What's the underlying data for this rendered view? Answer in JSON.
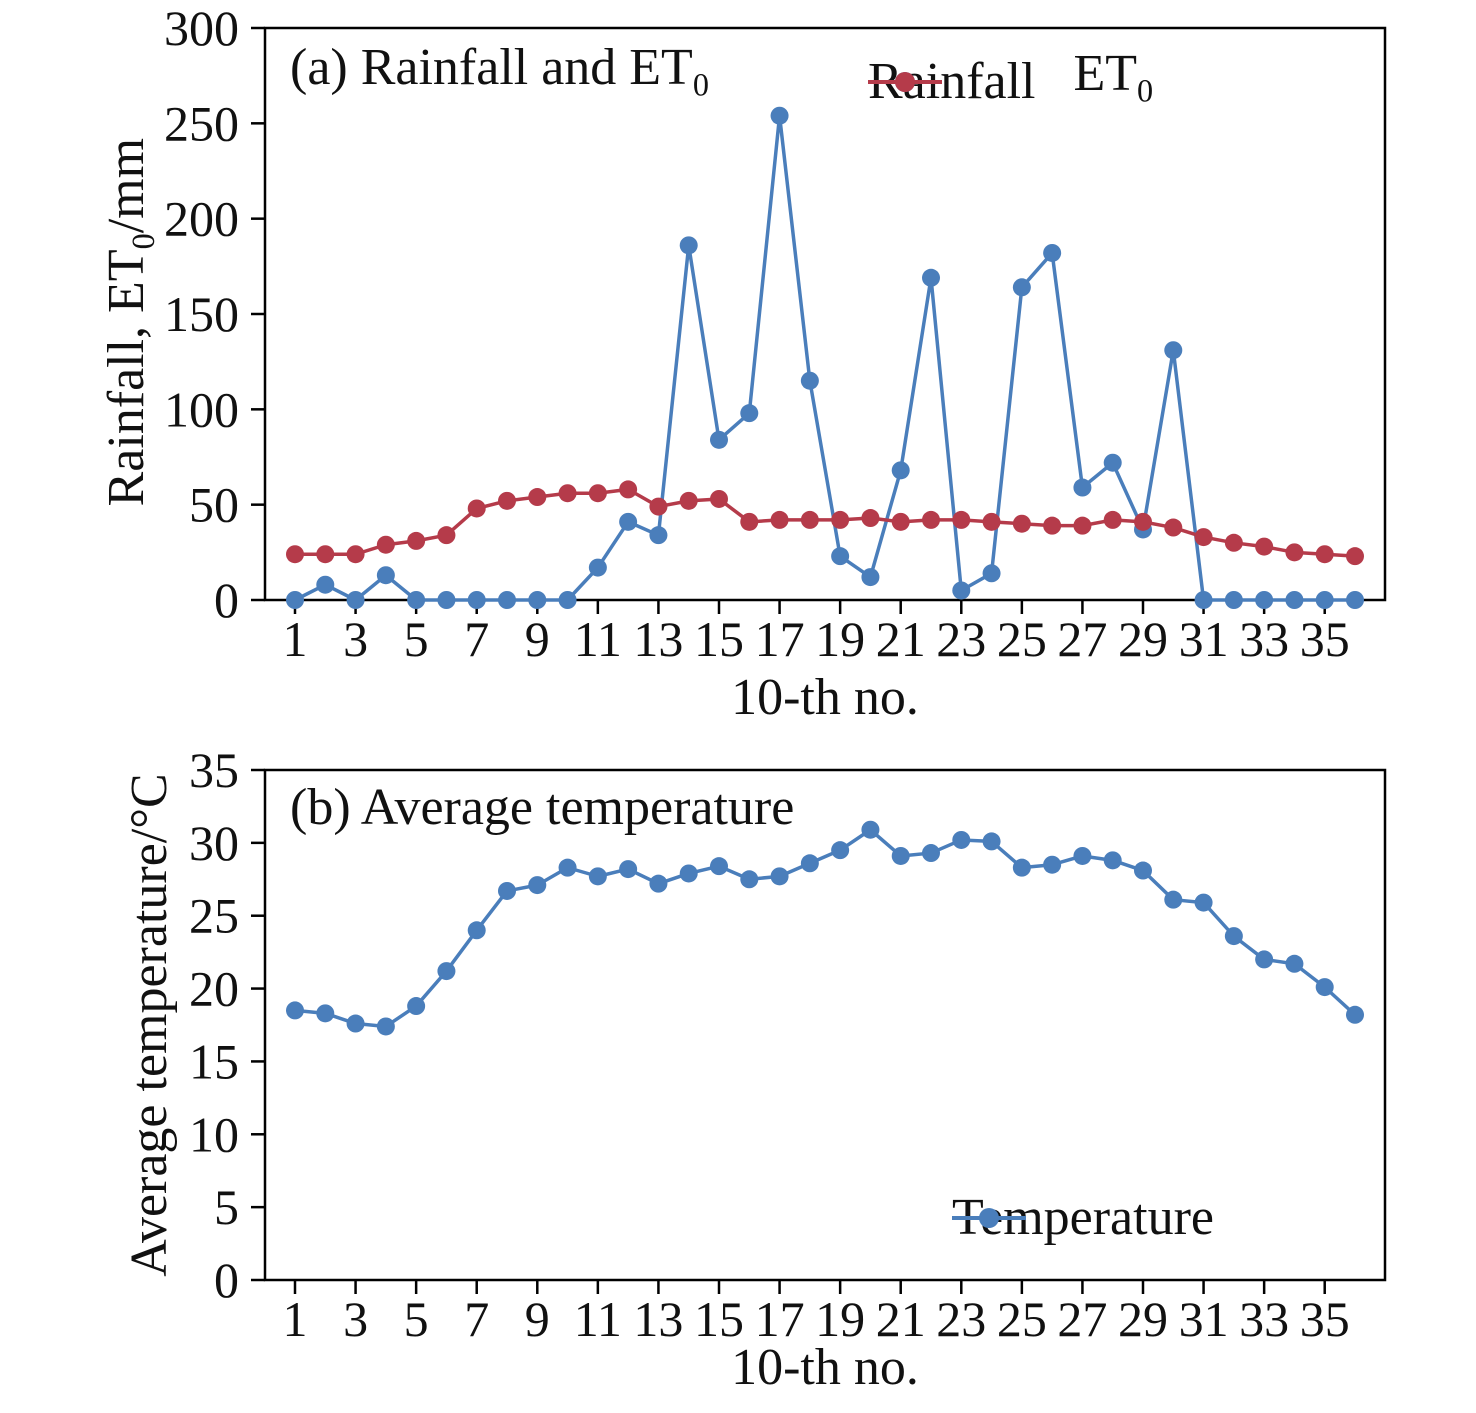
{
  "panel_a": {
    "title_main": "(a) Rainfall and ET",
    "title_sub": "0",
    "ylabel_main": "Rainfall, ET",
    "ylabel_sub": "0",
    "ylabel_suffix": "/mm",
    "xlabel": "10-th no.",
    "legend": {
      "rainfall_label": "Rainfall",
      "et_label_main": "ET",
      "et_label_sub": "0"
    }
  },
  "panel_b": {
    "title": "(b) Average temperature",
    "ylabel": "Average temperature/°C",
    "xlabel": "10-th no.",
    "legend": {
      "temperature_label": "Temperature"
    }
  },
  "colors": {
    "rainfall": "#4a7ebb",
    "et0": "#b53b4a",
    "temperature": "#4a7ebb",
    "axis": "#000000"
  },
  "chart_data": [
    {
      "type": "line",
      "panel": "a",
      "title": "(a) Rainfall and ET0",
      "xlabel": "10-th no.",
      "ylabel": "Rainfall, ET0/mm",
      "x": [
        1,
        2,
        3,
        4,
        5,
        6,
        7,
        8,
        9,
        10,
        11,
        12,
        13,
        14,
        15,
        16,
        17,
        18,
        19,
        20,
        21,
        22,
        23,
        24,
        25,
        26,
        27,
        28,
        29,
        30,
        31,
        32,
        33,
        34,
        35,
        36
      ],
      "xticks": [
        1,
        3,
        5,
        7,
        9,
        11,
        13,
        15,
        17,
        19,
        21,
        23,
        25,
        27,
        29,
        31,
        33,
        35
      ],
      "ylim": [
        0,
        300
      ],
      "yticks": [
        0,
        50,
        100,
        150,
        200,
        250,
        300
      ],
      "grid": false,
      "legend_position": "top-right-inside",
      "series": [
        {
          "name": "Rainfall",
          "color": "#4a7ebb",
          "values": [
            0,
            8,
            0,
            13,
            0,
            0,
            0,
            0,
            0,
            0,
            17,
            41,
            34,
            186,
            84,
            98,
            254,
            115,
            23,
            12,
            68,
            169,
            5,
            14,
            164,
            182,
            59,
            72,
            37,
            131,
            0,
            0,
            0,
            0,
            0,
            0
          ]
        },
        {
          "name": "ET0",
          "color": "#b53b4a",
          "values": [
            24,
            24,
            24,
            29,
            31,
            34,
            48,
            52,
            54,
            56,
            56,
            58,
            49,
            52,
            53,
            41,
            42,
            42,
            42,
            43,
            41,
            42,
            42,
            41,
            40,
            39,
            39,
            42,
            41,
            38,
            33,
            30,
            28,
            25,
            24,
            23
          ]
        }
      ]
    },
    {
      "type": "line",
      "panel": "b",
      "title": "(b) Average temperature",
      "xlabel": "10-th no.",
      "ylabel": "Average temperature/°C",
      "x": [
        1,
        2,
        3,
        4,
        5,
        6,
        7,
        8,
        9,
        10,
        11,
        12,
        13,
        14,
        15,
        16,
        17,
        18,
        19,
        20,
        21,
        22,
        23,
        24,
        25,
        26,
        27,
        28,
        29,
        30,
        31,
        32,
        33,
        34,
        35,
        36
      ],
      "xticks": [
        1,
        3,
        5,
        7,
        9,
        11,
        13,
        15,
        17,
        19,
        21,
        23,
        25,
        27,
        29,
        31,
        33,
        35
      ],
      "ylim": [
        0,
        35
      ],
      "yticks": [
        0,
        5,
        10,
        15,
        20,
        25,
        30,
        35
      ],
      "grid": false,
      "legend_position": "bottom-right-inside",
      "series": [
        {
          "name": "Temperature",
          "color": "#4a7ebb",
          "values": [
            18.5,
            18.3,
            17.6,
            17.4,
            18.8,
            21.2,
            24.0,
            26.7,
            27.1,
            28.3,
            27.7,
            28.2,
            27.2,
            27.9,
            28.4,
            27.5,
            27.7,
            28.6,
            29.5,
            30.9,
            29.1,
            29.3,
            30.2,
            30.1,
            28.3,
            28.5,
            29.1,
            28.8,
            28.1,
            26.1,
            25.9,
            23.6,
            22.0,
            21.7,
            20.1,
            18.2
          ]
        }
      ]
    }
  ]
}
